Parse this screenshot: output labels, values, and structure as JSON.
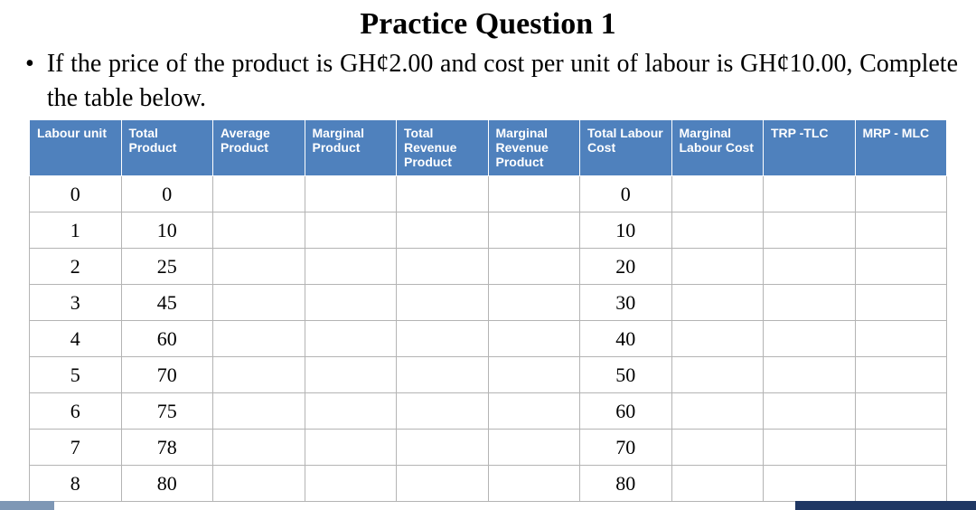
{
  "title": "Practice Question 1",
  "instruction": "If the price of the product is GH¢2.00 and cost per unit of labour is GH¢10.00, Complete the table below.",
  "bullet_glyph": "•",
  "table": {
    "header_bg": "#4f81bd",
    "header_fg": "#ffffff",
    "border_color": "#b4b4b4",
    "columns": [
      "Labour unit",
      "Total Product",
      "Average Product",
      "Marginal Product",
      "Total Revenue Product",
      "Marginal Revenue Product",
      "Total Labour Cost",
      "Marginal Labour Cost",
      "TRP -TLC",
      "MRP - MLC"
    ],
    "rows": [
      {
        "labour": "0",
        "tp": "0",
        "ap": "",
        "mp": "",
        "trp": "",
        "mrp": "",
        "tlc": "0",
        "mlc": "",
        "diff1": "",
        "diff2": ""
      },
      {
        "labour": "1",
        "tp": "10",
        "ap": "",
        "mp": "",
        "trp": "",
        "mrp": "",
        "tlc": "10",
        "mlc": "",
        "diff1": "",
        "diff2": ""
      },
      {
        "labour": "2",
        "tp": "25",
        "ap": "",
        "mp": "",
        "trp": "",
        "mrp": "",
        "tlc": "20",
        "mlc": "",
        "diff1": "",
        "diff2": ""
      },
      {
        "labour": "3",
        "tp": "45",
        "ap": "",
        "mp": "",
        "trp": "",
        "mrp": "",
        "tlc": "30",
        "mlc": "",
        "diff1": "",
        "diff2": ""
      },
      {
        "labour": "4",
        "tp": "60",
        "ap": "",
        "mp": "",
        "trp": "",
        "mrp": "",
        "tlc": "40",
        "mlc": "",
        "diff1": "",
        "diff2": ""
      },
      {
        "labour": "5",
        "tp": "70",
        "ap": "",
        "mp": "",
        "trp": "",
        "mrp": "",
        "tlc": "50",
        "mlc": "",
        "diff1": "",
        "diff2": ""
      },
      {
        "labour": "6",
        "tp": "75",
        "ap": "",
        "mp": "",
        "trp": "",
        "mrp": "",
        "tlc": "60",
        "mlc": "",
        "diff1": "",
        "diff2": ""
      },
      {
        "labour": "7",
        "tp": "78",
        "ap": "",
        "mp": "",
        "trp": "",
        "mrp": "",
        "tlc": "70",
        "mlc": "",
        "diff1": "",
        "diff2": ""
      },
      {
        "labour": "8",
        "tp": "80",
        "ap": "",
        "mp": "",
        "trp": "",
        "mrp": "",
        "tlc": "80",
        "mlc": "",
        "diff1": "",
        "diff2": ""
      }
    ]
  }
}
